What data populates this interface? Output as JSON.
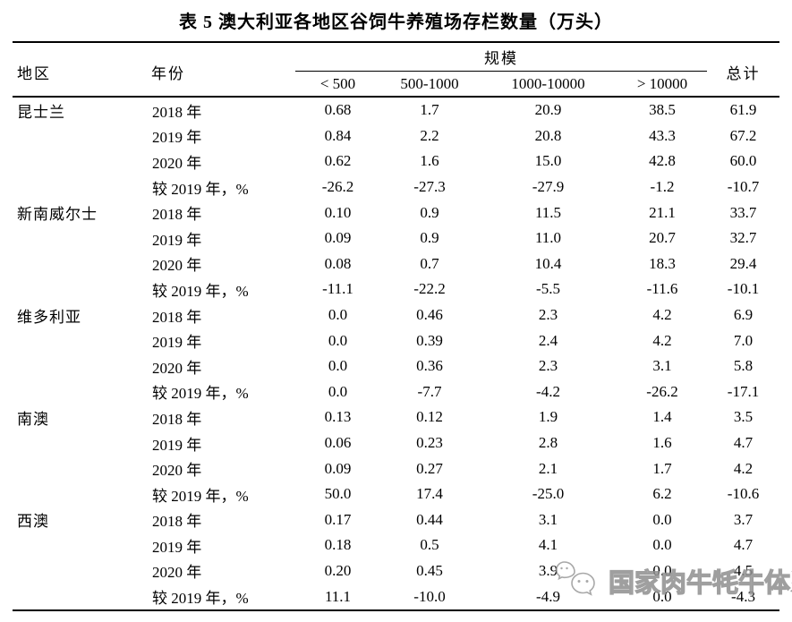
{
  "title": "表 5 澳大利亚各地区谷饲牛养殖场存栏数量（万头）",
  "table": {
    "headers": {
      "region": "地区",
      "year": "年份",
      "scale_group": "规模",
      "total": "总计",
      "scale_cols": [
        "< 500",
        "500-1000",
        "1000-10000",
        "> 10000"
      ]
    },
    "regions": [
      {
        "name": "昆士兰",
        "rows": [
          {
            "year": "2018 年",
            "values": [
              "0.68",
              "1.7",
              "20.9",
              "38.5",
              "61.9"
            ]
          },
          {
            "year": "2019 年",
            "values": [
              "0.84",
              "2.2",
              "20.8",
              "43.3",
              "67.2"
            ]
          },
          {
            "year": "2020 年",
            "values": [
              "0.62",
              "1.6",
              "15.0",
              "42.8",
              "60.0"
            ]
          },
          {
            "year": "较 2019 年，%",
            "values": [
              "-26.2",
              "-27.3",
              "-27.9",
              "-1.2",
              "-10.7"
            ]
          }
        ]
      },
      {
        "name": "新南威尔士",
        "rows": [
          {
            "year": "2018 年",
            "values": [
              "0.10",
              "0.9",
              "11.5",
              "21.1",
              "33.7"
            ]
          },
          {
            "year": "2019 年",
            "values": [
              "0.09",
              "0.9",
              "11.0",
              "20.7",
              "32.7"
            ]
          },
          {
            "year": "2020 年",
            "values": [
              "0.08",
              "0.7",
              "10.4",
              "18.3",
              "29.4"
            ]
          },
          {
            "year": "较 2019 年，%",
            "values": [
              "-11.1",
              "-22.2",
              "-5.5",
              "-11.6",
              "-10.1"
            ]
          }
        ]
      },
      {
        "name": "维多利亚",
        "rows": [
          {
            "year": "2018 年",
            "values": [
              "0.0",
              "0.46",
              "2.3",
              "4.2",
              "6.9"
            ]
          },
          {
            "year": "2019 年",
            "values": [
              "0.0",
              "0.39",
              "2.4",
              "4.2",
              "7.0"
            ]
          },
          {
            "year": "2020 年",
            "values": [
              "0.0",
              "0.36",
              "2.3",
              "3.1",
              "5.8"
            ]
          },
          {
            "year": "较 2019 年，%",
            "values": [
              "0.0",
              "-7.7",
              "-4.2",
              "-26.2",
              "-17.1"
            ]
          }
        ]
      },
      {
        "name": "南澳",
        "rows": [
          {
            "year": "2018 年",
            "values": [
              "0.13",
              "0.12",
              "1.9",
              "1.4",
              "3.5"
            ]
          },
          {
            "year": "2019 年",
            "values": [
              "0.06",
              "0.23",
              "2.8",
              "1.6",
              "4.7"
            ]
          },
          {
            "year": "2020 年",
            "values": [
              "0.09",
              "0.27",
              "2.1",
              "1.7",
              "4.2"
            ]
          },
          {
            "year": "较 2019 年，%",
            "values": [
              "50.0",
              "17.4",
              "-25.0",
              "6.2",
              "-10.6"
            ]
          }
        ]
      },
      {
        "name": "西澳",
        "rows": [
          {
            "year": "2018 年",
            "values": [
              "0.17",
              "0.44",
              "3.1",
              "0.0",
              "3.7"
            ]
          },
          {
            "year": "2019 年",
            "values": [
              "0.18",
              "0.5",
              "4.1",
              "0.0",
              "4.7"
            ]
          },
          {
            "year": "2020 年",
            "values": [
              "0.20",
              "0.45",
              "3.9",
              "0.0",
              "4.5"
            ]
          },
          {
            "year": "较 2019 年，%",
            "values": [
              "11.1",
              "-10.0",
              "-4.9",
              "0.0",
              "-4.3"
            ]
          }
        ]
      }
    ]
  },
  "watermark": {
    "icon": "wechat-icon",
    "text": "国家肉牛牦牛体系",
    "color": "#8f8f8f"
  }
}
